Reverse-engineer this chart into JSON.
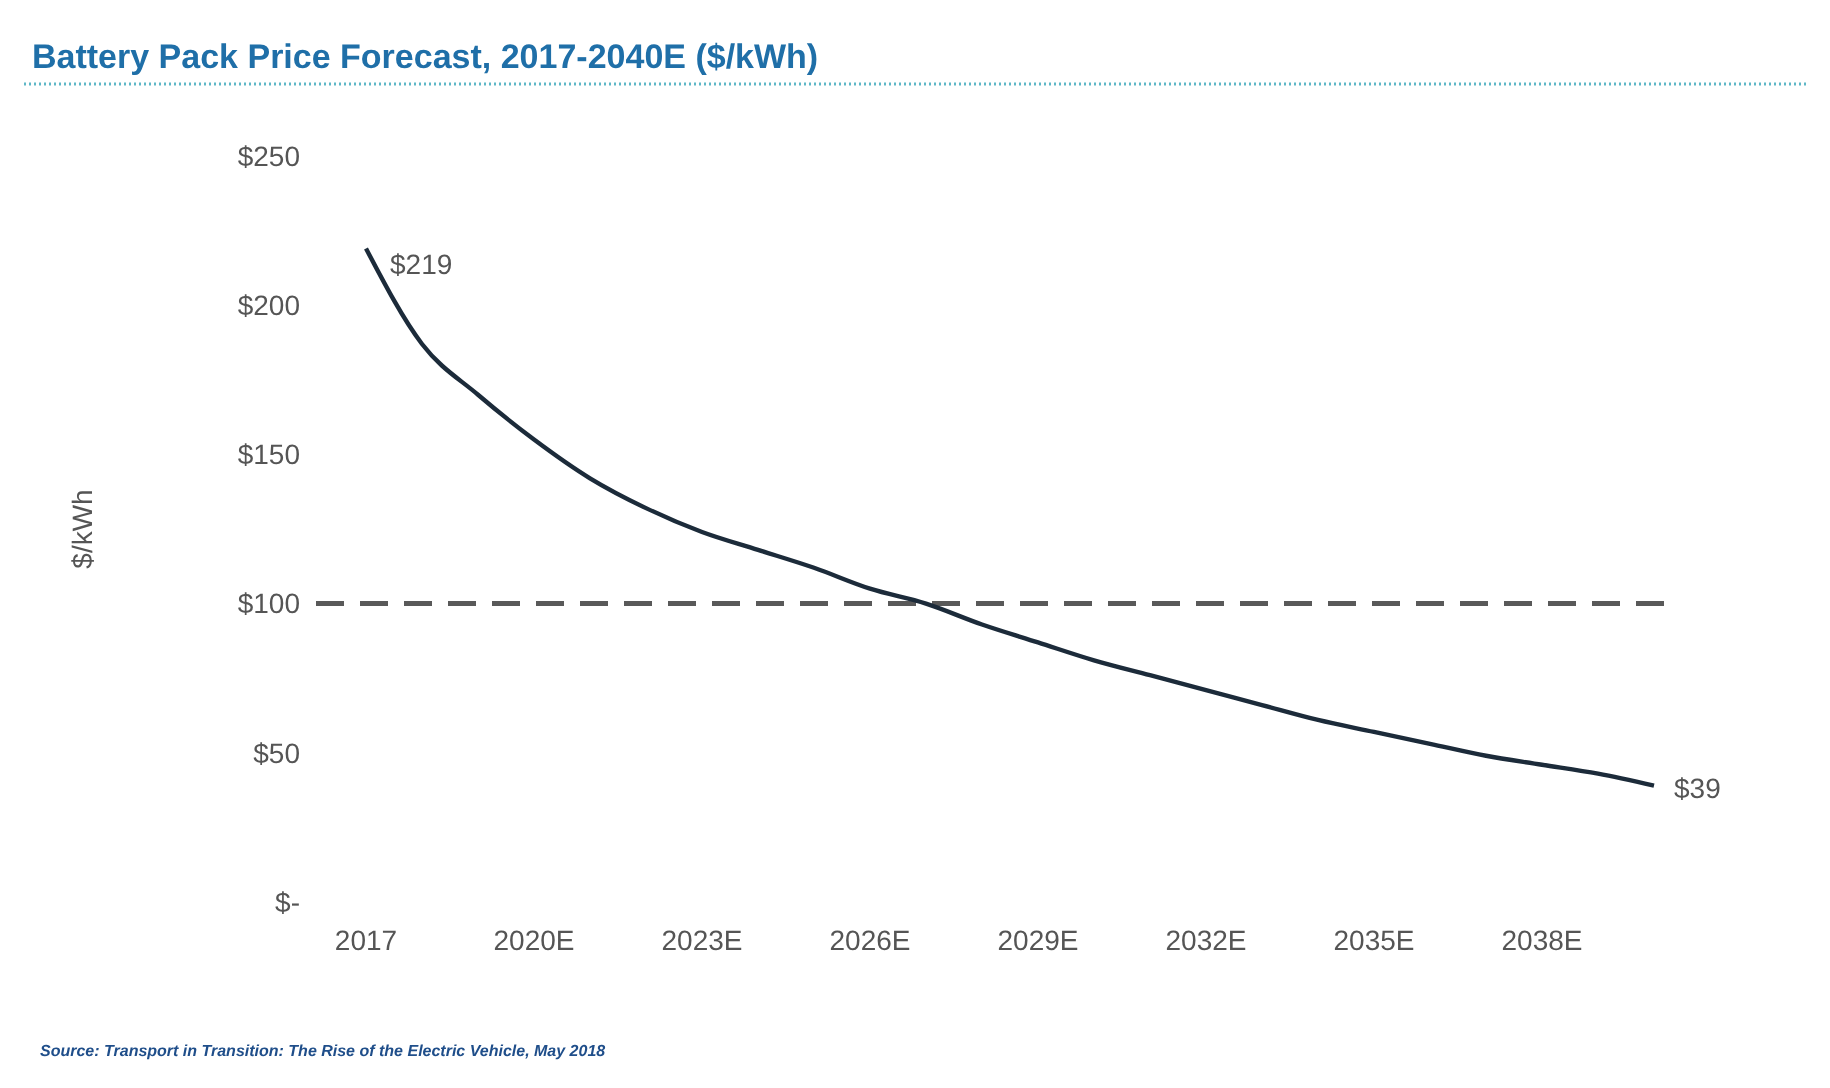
{
  "chart_data": {
    "type": "line",
    "title": "Battery Pack Price Forecast, 2017-2040E ($/kWh)",
    "ylabel": "$/kWh",
    "categories": [
      "2017",
      null,
      null,
      "2020E",
      null,
      null,
      "2023E",
      null,
      null,
      "2026E",
      null,
      null,
      "2029E",
      null,
      null,
      "2032E",
      null,
      null,
      "2035E",
      null,
      null,
      "2038E",
      null,
      null
    ],
    "series": [
      {
        "color": "#1c2b3a",
        "values": [
          219,
          187,
          170,
          155,
          142,
          132,
          124,
          118,
          112,
          105,
          100,
          93,
          87,
          81,
          76,
          71,
          66,
          61,
          57,
          53,
          49,
          46,
          43,
          39
        ],
        "value_labels": [
          "$219",
          null,
          null,
          null,
          null,
          null,
          null,
          null,
          null,
          null,
          null,
          null,
          null,
          null,
          null,
          null,
          null,
          null,
          null,
          null,
          null,
          null,
          null,
          "$39"
        ]
      }
    ],
    "ylim": [
      0,
      250
    ],
    "yticks": [
      {
        "value": 0,
        "label": "$-"
      },
      {
        "value": 50,
        "label": "$50"
      },
      {
        "value": 100,
        "label": "$100"
      },
      {
        "value": 150,
        "label": "$150"
      },
      {
        "value": 200,
        "label": "$200"
      },
      {
        "value": 250,
        "label": "$250"
      }
    ],
    "ref_lines": [
      {
        "axis": "y",
        "value": 100,
        "color": "#595959",
        "line_style": "dashed"
      }
    ],
    "grid": false,
    "marker": "none",
    "line_style": "solid",
    "annotations": [
      "Source: Transport in Transition: The Rise of the Electric Vehicle, May 2018"
    ]
  }
}
